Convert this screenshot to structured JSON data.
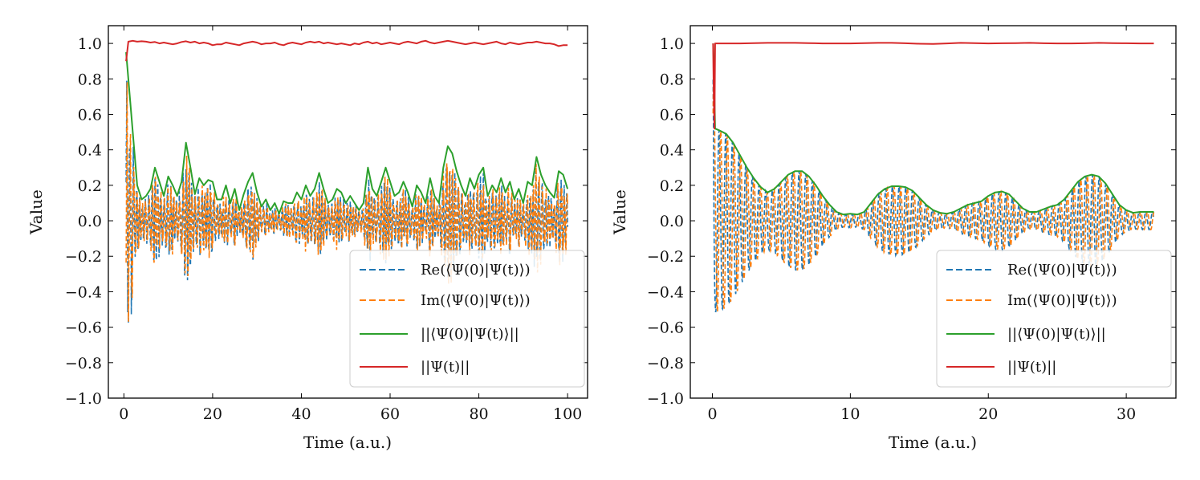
{
  "chart_data": [
    {
      "type": "line",
      "xlabel": "Time (a.u.)",
      "ylabel": "Value",
      "xlim": [
        -3.5,
        104.5
      ],
      "ylim": [
        -1.0,
        1.1
      ],
      "xticks": [
        0,
        20,
        40,
        60,
        80,
        100
      ],
      "xtick_labels": [
        "0",
        "20",
        "40",
        "60",
        "80",
        "100"
      ],
      "yticks": [
        -1.0,
        -0.8,
        -0.6,
        -0.4,
        -0.2,
        0.0,
        0.2,
        0.4,
        0.6,
        0.8,
        1.0
      ],
      "ytick_labels": [
        "−1.0",
        "−0.8",
        "−0.6",
        "−0.4",
        "−0.2",
        "0.0",
        "0.2",
        "0.4",
        "0.6",
        "0.8",
        "1.0"
      ],
      "legend_position": "lower-right",
      "series": [
        {
          "name": "Re(⟨Ψ(0)|Ψ(t)⟩)",
          "color": "#1f77b4",
          "style": "dashed"
        },
        {
          "name": "Im(⟨Ψ(0)|Ψ(t)⟩)",
          "color": "#ff7f0e",
          "style": "dashed"
        },
        {
          "name": "||⟨Ψ(0)|Ψ(t)⟩||",
          "color": "#2ca02c",
          "style": "solid",
          "x": [
            0.5,
            1,
            2,
            3,
            4,
            5,
            6,
            7,
            8,
            9,
            10,
            11,
            12,
            13,
            14,
            15,
            16,
            17,
            18,
            19,
            20,
            21,
            22,
            23,
            24,
            25,
            26,
            27,
            28,
            29,
            30,
            31,
            32,
            33,
            34,
            35,
            36,
            37,
            38,
            39,
            40,
            41,
            42,
            43,
            44,
            45,
            46,
            47,
            48,
            49,
            50,
            51,
            52,
            53,
            54,
            55,
            56,
            57,
            58,
            59,
            60,
            61,
            62,
            63,
            64,
            65,
            66,
            67,
            68,
            69,
            70,
            71,
            72,
            73,
            74,
            75,
            76,
            77,
            78,
            79,
            80,
            81,
            82,
            83,
            84,
            85,
            86,
            87,
            88,
            89,
            90,
            91,
            92,
            93,
            94,
            95,
            96,
            97,
            98,
            99,
            100
          ],
          "y": [
            0.95,
            0.8,
            0.5,
            0.2,
            0.12,
            0.14,
            0.18,
            0.3,
            0.22,
            0.14,
            0.25,
            0.2,
            0.14,
            0.22,
            0.44,
            0.3,
            0.15,
            0.24,
            0.2,
            0.23,
            0.22,
            0.12,
            0.12,
            0.2,
            0.1,
            0.18,
            0.06,
            0.15,
            0.22,
            0.27,
            0.16,
            0.08,
            0.12,
            0.06,
            0.1,
            0.04,
            0.11,
            0.1,
            0.1,
            0.16,
            0.12,
            0.2,
            0.14,
            0.18,
            0.27,
            0.18,
            0.1,
            0.12,
            0.18,
            0.16,
            0.1,
            0.14,
            0.1,
            0.06,
            0.1,
            0.3,
            0.18,
            0.14,
            0.22,
            0.3,
            0.22,
            0.14,
            0.16,
            0.22,
            0.16,
            0.08,
            0.2,
            0.16,
            0.1,
            0.24,
            0.14,
            0.1,
            0.3,
            0.42,
            0.38,
            0.28,
            0.2,
            0.14,
            0.24,
            0.18,
            0.26,
            0.3,
            0.14,
            0.2,
            0.16,
            0.24,
            0.16,
            0.22,
            0.12,
            0.18,
            0.1,
            0.22,
            0.2,
            0.36,
            0.26,
            0.2,
            0.16,
            0.13,
            0.28,
            0.26,
            0.18
          ]
        },
        {
          "name": "||Ψ(t)||",
          "color": "#d62728",
          "style": "solid",
          "x": [
            0.5,
            1,
            2,
            3,
            4,
            5,
            6,
            7,
            8,
            9,
            10,
            11,
            12,
            13,
            14,
            15,
            16,
            17,
            18,
            19,
            20,
            21,
            22,
            23,
            24,
            25,
            26,
            27,
            28,
            29,
            30,
            31,
            32,
            33,
            34,
            35,
            36,
            37,
            38,
            39,
            40,
            41,
            42,
            43,
            44,
            45,
            46,
            47,
            48,
            49,
            50,
            51,
            52,
            53,
            54,
            55,
            56,
            57,
            58,
            59,
            60,
            61,
            62,
            63,
            64,
            65,
            66,
            67,
            68,
            69,
            70,
            71,
            72,
            73,
            74,
            75,
            76,
            77,
            78,
            79,
            80,
            81,
            82,
            83,
            84,
            85,
            86,
            87,
            88,
            89,
            90,
            91,
            92,
            93,
            94,
            95,
            96,
            97,
            98,
            99,
            100
          ],
          "y": [
            0.9,
            1.01,
            1.015,
            1.01,
            1.012,
            1.01,
            1.005,
            1.008,
            1.0,
            1.005,
            1.0,
            0.995,
            1.0,
            1.008,
            1.012,
            1.005,
            1.01,
            1.0,
            1.005,
            1.0,
            0.99,
            0.995,
            0.995,
            1.005,
            1.0,
            0.995,
            0.99,
            1.0,
            1.005,
            1.01,
            1.005,
            0.995,
            1.0,
            1.0,
            1.005,
            0.995,
            0.99,
            1.0,
            1.005,
            1.0,
            0.995,
            1.005,
            1.01,
            1.005,
            1.01,
            1.0,
            1.005,
            1.0,
            0.995,
            1.0,
            0.995,
            0.99,
            1.0,
            0.995,
            1.005,
            1.01,
            1.0,
            1.005,
            0.995,
            1.0,
            1.005,
            1.0,
            0.995,
            1.005,
            1.01,
            1.005,
            1.0,
            1.01,
            1.015,
            1.005,
            1.0,
            1.005,
            1.01,
            1.015,
            1.01,
            1.005,
            1.0,
            0.995,
            1.0,
            1.005,
            1.0,
            0.995,
            1.0,
            1.005,
            1.01,
            1.0,
            0.995,
            1.005,
            1.0,
            0.995,
            1.0,
            1.005,
            1.005,
            1.01,
            1.005,
            1.0,
            1.0,
            0.995,
            0.985,
            0.99,
            0.99
          ]
        }
      ]
    },
    {
      "type": "line",
      "xlabel": "Time (a.u.)",
      "ylabel": "Value",
      "xlim": [
        -1.6,
        33.6
      ],
      "ylim": [
        -1.0,
        1.1
      ],
      "xticks": [
        0,
        10,
        20,
        30
      ],
      "xtick_labels": [
        "0",
        "10",
        "20",
        "30"
      ],
      "yticks": [
        -1.0,
        -0.8,
        -0.6,
        -0.4,
        -0.2,
        0.0,
        0.2,
        0.4,
        0.6,
        0.8,
        1.0
      ],
      "ytick_labels": [
        "−1.0",
        "−0.8",
        "−0.6",
        "−0.4",
        "−0.2",
        "0.0",
        "0.2",
        "0.4",
        "0.6",
        "0.8",
        "1.0"
      ],
      "legend_position": "lower-right",
      "series": [
        {
          "name": "Re(⟨Ψ(0)|Ψ(t)⟩)",
          "color": "#1f77b4",
          "style": "dashed"
        },
        {
          "name": "Im(⟨Ψ(0)|Ψ(t)⟩)",
          "color": "#ff7f0e",
          "style": "dashed"
        },
        {
          "name": "||⟨Ψ(0)|Ψ(t)⟩||",
          "color": "#2ca02c",
          "style": "solid",
          "x": [
            0.05,
            0.1,
            0.15,
            0.2,
            0.5,
            1,
            1.5,
            2,
            2.5,
            3,
            3.5,
            4,
            4.5,
            5,
            5.5,
            6,
            6.5,
            7,
            7.5,
            8,
            8.5,
            9,
            9.5,
            10,
            10.5,
            11,
            11.5,
            12,
            12.5,
            13,
            13.5,
            14,
            14.5,
            15,
            15.5,
            16,
            16.5,
            17,
            17.5,
            18,
            18.5,
            19,
            19.5,
            20,
            20.5,
            21,
            21.5,
            22,
            22.5,
            23,
            23.5,
            24,
            24.5,
            25,
            25.5,
            26,
            26.5,
            27,
            27.5,
            28,
            28.5,
            29,
            29.5,
            30,
            30.5,
            31,
            31.5,
            32
          ],
          "y": [
            1.0,
            0.9,
            0.7,
            0.52,
            0.51,
            0.49,
            0.44,
            0.37,
            0.3,
            0.24,
            0.19,
            0.16,
            0.18,
            0.22,
            0.26,
            0.28,
            0.28,
            0.25,
            0.2,
            0.14,
            0.09,
            0.05,
            0.035,
            0.04,
            0.035,
            0.05,
            0.1,
            0.15,
            0.18,
            0.195,
            0.195,
            0.19,
            0.17,
            0.13,
            0.09,
            0.06,
            0.045,
            0.04,
            0.05,
            0.07,
            0.09,
            0.1,
            0.11,
            0.14,
            0.16,
            0.165,
            0.15,
            0.11,
            0.07,
            0.05,
            0.05,
            0.065,
            0.08,
            0.09,
            0.12,
            0.17,
            0.22,
            0.25,
            0.26,
            0.25,
            0.21,
            0.15,
            0.09,
            0.06,
            0.045,
            0.05,
            0.05,
            0.05
          ]
        },
        {
          "name": "||Ψ(t)||",
          "color": "#d62728",
          "style": "solid",
          "x": [
            0.05,
            0.1,
            0.15,
            0.2,
            0.5,
            1,
            2,
            3,
            4,
            5,
            6,
            7,
            8,
            9,
            10,
            11,
            12,
            13,
            14,
            15,
            16,
            17,
            18,
            19,
            20,
            21,
            22,
            23,
            24,
            25,
            26,
            27,
            28,
            29,
            30,
            31,
            32
          ],
          "y": [
            1.0,
            0.7,
            0.52,
            1.0,
            1.0,
            1.0,
            1.0,
            1.002,
            1.003,
            1.003,
            1.003,
            1.002,
            1.0,
            1.0,
            1.0,
            1.002,
            1.003,
            1.003,
            1.001,
            0.998,
            0.997,
            1.0,
            1.003,
            1.002,
            1.0,
            1.001,
            1.002,
            1.003,
            1.001,
            1.0,
            1.0,
            1.001,
            1.003,
            1.002,
            1.001,
            1.0,
            1.0
          ]
        }
      ]
    }
  ]
}
